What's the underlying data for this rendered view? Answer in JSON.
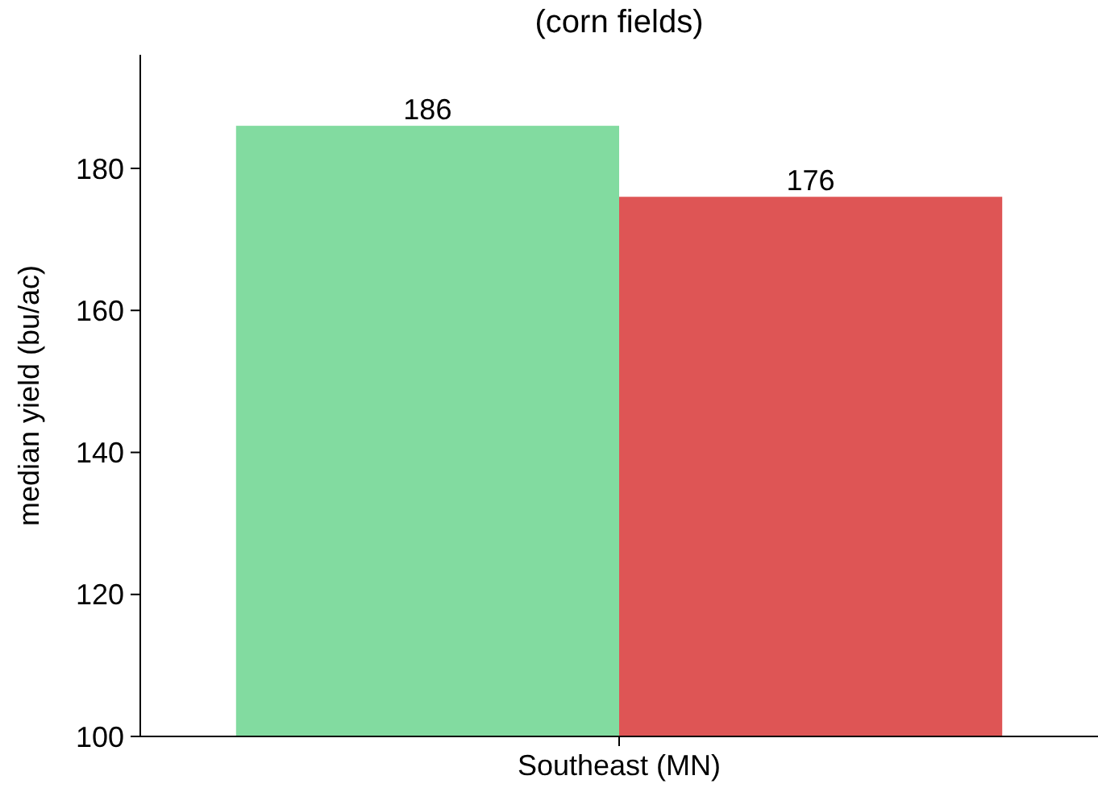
{
  "chart_data": {
    "type": "bar",
    "title": "(corn fields)",
    "ylabel": "median yield (bu/ac)",
    "categories": [
      "Southeast (MN)"
    ],
    "series": [
      {
        "color": "#82dba0",
        "values": [
          186
        ]
      },
      {
        "color": "#de5555",
        "values": [
          176
        ]
      }
    ],
    "ylim": [
      100,
      196
    ],
    "yticks": [
      100,
      120,
      140,
      160,
      180
    ],
    "data_labels": true
  }
}
